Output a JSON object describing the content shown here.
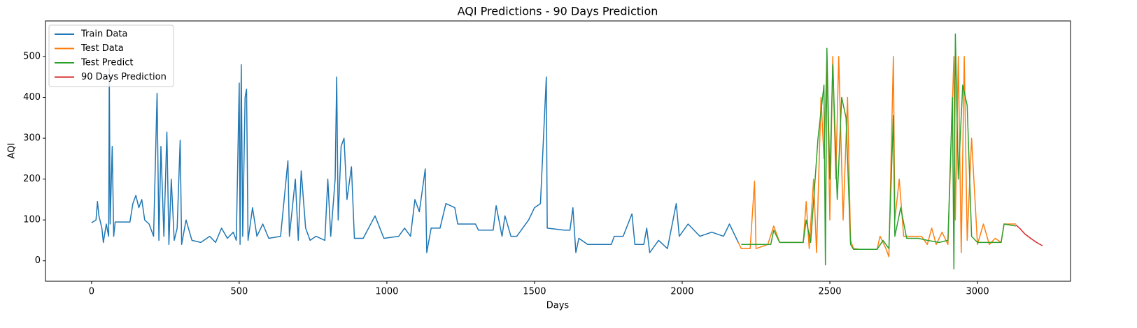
{
  "chart_data": {
    "type": "line",
    "title": "AQI Predictions - 90 Days Prediction",
    "x_label": "Days",
    "y_label": "AQI",
    "xlim": [
      -156,
      3315
    ],
    "ylim": [
      -50,
      587
    ],
    "xticks": [
      0,
      500,
      1000,
      1500,
      2000,
      2500,
      3000
    ],
    "yticks": [
      0,
      100,
      200,
      300,
      400,
      500
    ],
    "legend": "upper-left",
    "grid": false,
    "series": [
      {
        "name": "Train Data",
        "color": "#1f77b4",
        "x": [
          0,
          15,
          20,
          25,
          35,
          40,
          50,
          58,
          60,
          63,
          70,
          75,
          80,
          100,
          130,
          140,
          150,
          160,
          170,
          180,
          195,
          210,
          222,
          228,
          235,
          245,
          255,
          262,
          270,
          280,
          290,
          300,
          305,
          320,
          340,
          370,
          400,
          420,
          440,
          460,
          480,
          490,
          500,
          503,
          507,
          512,
          520,
          525,
          530,
          545,
          560,
          580,
          600,
          640,
          665,
          670,
          690,
          700,
          710,
          725,
          740,
          760,
          790,
          800,
          810,
          825,
          830,
          835,
          845,
          855,
          865,
          880,
          890,
          920,
          960,
          990,
          1040,
          1060,
          1080,
          1095,
          1110,
          1130,
          1135,
          1150,
          1180,
          1200,
          1230,
          1240,
          1300,
          1310,
          1360,
          1370,
          1390,
          1400,
          1420,
          1440,
          1480,
          1500,
          1520,
          1540,
          1543,
          1600,
          1620,
          1630,
          1640,
          1650,
          1680,
          1760,
          1770,
          1800,
          1830,
          1840,
          1870,
          1880,
          1890,
          1920,
          1950,
          1980,
          1990,
          2020,
          2060,
          2100,
          2140,
          2160,
          2190
        ],
        "values": [
          93,
          100,
          145,
          110,
          80,
          45,
          90,
          60,
          470,
          90,
          280,
          60,
          95,
          95,
          95,
          140,
          160,
          130,
          150,
          100,
          90,
          60,
          410,
          50,
          280,
          60,
          315,
          40,
          200,
          50,
          80,
          295,
          40,
          100,
          50,
          45,
          60,
          45,
          80,
          55,
          70,
          50,
          435,
          40,
          480,
          60,
          400,
          420,
          50,
          130,
          60,
          90,
          55,
          60,
          245,
          60,
          200,
          50,
          220,
          80,
          50,
          60,
          50,
          200,
          60,
          200,
          450,
          100,
          280,
          300,
          150,
          230,
          55,
          55,
          110,
          55,
          60,
          80,
          60,
          150,
          120,
          225,
          20,
          80,
          80,
          140,
          130,
          90,
          90,
          75,
          75,
          135,
          60,
          110,
          60,
          60,
          100,
          130,
          140,
          450,
          80,
          75,
          75,
          130,
          20,
          55,
          40,
          40,
          60,
          60,
          115,
          40,
          40,
          80,
          20,
          50,
          30,
          140,
          60,
          90,
          60,
          70,
          60,
          90,
          45
        ]
      },
      {
        "name": "Test Data",
        "color": "#ff7f0e",
        "x": [
          2190,
          2200,
          2230,
          2245,
          2250,
          2290,
          2310,
          2330,
          2410,
          2420,
          2430,
          2445,
          2455,
          2470,
          2480,
          2490,
          2500,
          2510,
          2520,
          2530,
          2545,
          2560,
          2570,
          2580,
          2600,
          2660,
          2670,
          2690,
          2700,
          2715,
          2720,
          2735,
          2750,
          2780,
          2810,
          2830,
          2845,
          2860,
          2880,
          2900,
          2920,
          2925,
          2935,
          2945,
          2955,
          2965,
          2980,
          3000,
          3020,
          3040,
          3060,
          3080,
          3090,
          3130
        ],
        "values": [
          45,
          30,
          30,
          195,
          30,
          40,
          85,
          45,
          45,
          145,
          30,
          200,
          20,
          400,
          250,
          500,
          100,
          500,
          200,
          500,
          100,
          400,
          50,
          30,
          28,
          28,
          60,
          30,
          10,
          500,
          100,
          200,
          60,
          60,
          60,
          40,
          80,
          40,
          70,
          40,
          500,
          100,
          500,
          20,
          500,
          50,
          300,
          40,
          90,
          40,
          55,
          45,
          90,
          90
        ]
      },
      {
        "name": "Test Predict",
        "color": "#2ca02c",
        "x": [
          2200,
          2300,
          2310,
          2330,
          2410,
          2420,
          2435,
          2460,
          2480,
          2485,
          2490,
          2500,
          2510,
          2525,
          2540,
          2555,
          2570,
          2580,
          2660,
          2680,
          2700,
          2715,
          2720,
          2740,
          2760,
          2800,
          2830,
          2870,
          2900,
          2915,
          2920,
          2925,
          2935,
          2950,
          2965,
          2980,
          3000,
          3080,
          3090,
          3130
        ],
        "values": [
          40,
          40,
          75,
          45,
          45,
          100,
          45,
          300,
          430,
          -10,
          520,
          200,
          480,
          150,
          400,
          350,
          40,
          28,
          28,
          50,
          30,
          355,
          60,
          130,
          55,
          55,
          50,
          45,
          50,
          400,
          -20,
          555,
          200,
          430,
          380,
          60,
          45,
          45,
          90,
          85
        ]
      },
      {
        "name": "90 Days Prediction",
        "color": "#d62728",
        "x": [
          3130,
          3145,
          3160,
          3180,
          3200,
          3220
        ],
        "values": [
          88,
          78,
          66,
          55,
          45,
          37
        ]
      }
    ]
  }
}
